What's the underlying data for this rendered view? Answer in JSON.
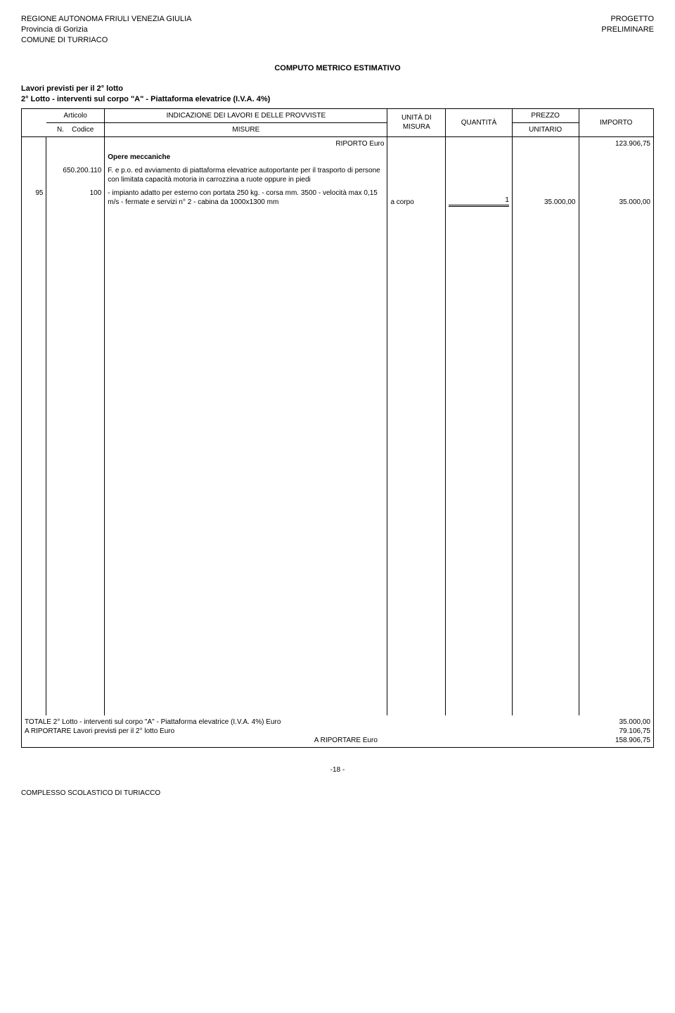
{
  "header": {
    "left": [
      "REGIONE AUTONOMA FRIULI VENEZIA GIULIA",
      "Provincia di Gorizia",
      "COMUNE DI TURRIACO"
    ],
    "right": [
      "PROGETTO",
      "PRELIMINARE"
    ]
  },
  "title": "COMPUTO METRICO ESTIMATIVO",
  "subtitle": [
    "Lavori previsti per il 2° lotto",
    "2° Lotto - interventi sul corpo \"A\" - Piattaforma elevatrice (I.V.A. 4%)"
  ],
  "table": {
    "head": {
      "n": "N.",
      "articolo": "Articolo",
      "codice": "Codice",
      "indicazione": "INDICAZIONE DEI LAVORI E DELLE PROVVISTE",
      "misure": "MISURE",
      "unita_di_misura": "UNITÀ DI MISURA",
      "quantita": "QUANTITÀ",
      "prezzo": "PREZZO",
      "unitario": "UNITARIO",
      "importo": "IMPORTO"
    },
    "riporto": {
      "label": "RIPORTO Euro",
      "value": "123.906,75"
    },
    "section_label": "Opere meccaniche",
    "item": {
      "code": "650.200.110",
      "desc_line1": "F. e p.o. ed avviamento di piattaforma elevatrice autoportante per il trasporto di persone con limitata capacità motoria in carrozzina a ruote oppure in piedi"
    },
    "row": {
      "n": "95",
      "sub": "100",
      "desc": "- impianto adatto per esterno con portata 250 kg. - corsa mm. 3500 - velocità max 0,15 m/s - fermate e servizi n° 2 - cabina da 1000x1300 mm",
      "unit": "a corpo",
      "qty": "1",
      "price": "35.000,00",
      "imp": "35.000,00"
    }
  },
  "totals": {
    "l1": {
      "label": "TOTALE 2° Lotto - interventi sul corpo \"A\" - Piattaforma elevatrice (I.V.A. 4%) Euro",
      "val": "35.000,00"
    },
    "l2": {
      "label": "A RIPORTARE Lavori previsti per il 2° lotto Euro",
      "val": "79.106,75"
    },
    "l3": {
      "label": "A RIPORTARE Euro",
      "val": "158.906,75"
    }
  },
  "page_num": "-18  -",
  "footer": "COMPLESSO SCOLASTICO DI TURIACCO"
}
